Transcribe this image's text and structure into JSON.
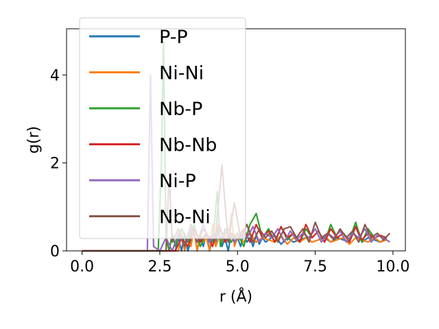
{
  "chart_data": {
    "type": "line",
    "xlabel": "r (Å)",
    "ylabel": "g(r)",
    "xlim": [
      -0.5,
      10.4
    ],
    "ylim": [
      0,
      5.05
    ],
    "xticks": [
      "0.0",
      "2.5",
      "5.0",
      "7.5",
      "10.0"
    ],
    "xtick_values": [
      0,
      2.5,
      5.0,
      7.5,
      10.0
    ],
    "yticks": [
      "0",
      "2",
      "4"
    ],
    "ytick_values": [
      0,
      2,
      4
    ],
    "grid": false,
    "legend_position": "top-left",
    "series": [
      {
        "name": "P-P",
        "color": "#1f77b4",
        "x": [
          0,
          3.0,
          3.1,
          3.2,
          3.3,
          3.4,
          3.5,
          3.6,
          3.7,
          3.8,
          3.9,
          4.0,
          4.1,
          4.2,
          4.3,
          4.4,
          4.5,
          4.6,
          4.7,
          4.8,
          4.9,
          5.0,
          5.1,
          5.2,
          5.3,
          5.4,
          5.5,
          5.6,
          5.7,
          5.8,
          5.9,
          6.0,
          6.2,
          6.4,
          6.6,
          6.8,
          7.0,
          7.2,
          7.4,
          7.6,
          7.8,
          8.0,
          8.2,
          8.4,
          8.6,
          8.8,
          9.0,
          9.2,
          9.4,
          9.6,
          9.8
        ],
        "y": [
          0,
          0,
          0.3,
          0,
          0.4,
          0,
          0.2,
          0.5,
          0,
          0.3,
          0.1,
          0.4,
          0,
          0.3,
          0.2,
          0.5,
          0.1,
          0.3,
          0,
          0.4,
          0.2,
          0.3,
          0.1,
          0.4,
          0.2,
          0.3,
          0.1,
          0.35,
          0.15,
          0.3,
          0.2,
          0.25,
          0.35,
          0.15,
          0.3,
          0.2,
          0.25,
          0.3,
          0.2,
          0.25,
          0.3,
          0.2,
          0.3,
          0.25,
          0.2,
          0.55,
          0.2,
          0.3,
          0.25,
          0.2,
          0.3
        ]
      },
      {
        "name": "Ni-Ni",
        "color": "#ff7f0e",
        "x": [
          0,
          3.1,
          3.2,
          3.3,
          3.4,
          3.5,
          3.6,
          3.7,
          3.8,
          3.9,
          4.0,
          4.1,
          4.2,
          4.3,
          4.4,
          4.5,
          4.6,
          4.7,
          4.8,
          4.9,
          5.0,
          5.2,
          5.4,
          5.6,
          5.8,
          6.0,
          6.2,
          6.4,
          6.6,
          6.8,
          7.0,
          7.2,
          7.4,
          7.6,
          7.8,
          8.0,
          8.2,
          8.4,
          8.6,
          8.8,
          9.0,
          9.2,
          9.4,
          9.6,
          9.8
        ],
        "y": [
          0,
          0,
          0.4,
          0,
          0.3,
          0.1,
          0.5,
          0,
          0.4,
          0.2,
          0.3,
          0,
          0.6,
          0.1,
          0.3,
          0.2,
          0.4,
          0.2,
          0.85,
          0.1,
          0.3,
          0.2,
          0.4,
          0.2,
          0.3,
          0.25,
          0.2,
          0.35,
          0.15,
          0.3,
          0.2,
          0.3,
          0.2,
          0.25,
          0.35,
          0.2,
          0.25,
          0.3,
          0.15,
          0.3,
          0.25,
          0.2,
          0.3,
          0.2,
          0.25
        ]
      },
      {
        "name": "Nb-P",
        "color": "#2ca02c",
        "x": [
          0,
          2.45,
          2.55,
          2.62,
          2.7,
          2.8,
          2.9,
          3.0,
          3.2,
          3.4,
          3.6,
          3.8,
          4.0,
          4.2,
          4.35,
          4.45,
          4.6,
          4.8,
          5.0,
          5.2,
          5.4,
          5.6,
          5.8,
          6.0,
          6.2,
          6.4,
          6.6,
          6.8,
          7.0,
          7.2,
          7.4,
          7.6,
          7.8,
          8.0,
          8.2,
          8.4,
          8.6,
          8.8,
          9.0,
          9.2,
          9.4,
          9.6,
          9.8
        ],
        "y": [
          0,
          0,
          2.0,
          4.75,
          0.3,
          0,
          0.4,
          0.1,
          0.5,
          0.2,
          0.6,
          0.1,
          0.4,
          0.2,
          1.35,
          0.1,
          0.5,
          0.2,
          0.4,
          0.1,
          0.6,
          0.85,
          0.3,
          0.5,
          0.2,
          0.55,
          0.25,
          0.4,
          0.2,
          0.5,
          0.3,
          0.45,
          0.2,
          0.6,
          0.3,
          0.4,
          0.25,
          0.65,
          0.2,
          0.5,
          0.3,
          0.35,
          0.3
        ]
      },
      {
        "name": "Nb-Nb",
        "color": "#d62728",
        "x": [
          0,
          3.0,
          3.2,
          3.4,
          3.6,
          3.8,
          4.0,
          4.2,
          4.4,
          4.6,
          4.8,
          5.0,
          5.2,
          5.4,
          5.6,
          5.8,
          6.0,
          6.2,
          6.4,
          6.6,
          6.8,
          7.0,
          7.2,
          7.4,
          7.6,
          7.8,
          8.0,
          8.2,
          8.4,
          8.6,
          8.8,
          9.0,
          9.2,
          9.4,
          9.6,
          9.8
        ],
        "y": [
          0,
          0,
          0.3,
          0.1,
          0.5,
          0.2,
          0.4,
          0.1,
          0.6,
          0.2,
          0.4,
          0.3,
          0.5,
          0.2,
          0.6,
          0.3,
          0.45,
          0.2,
          0.55,
          0.3,
          0.4,
          0.2,
          0.6,
          0.3,
          0.45,
          0.2,
          0.5,
          0.3,
          0.4,
          0.2,
          0.55,
          0.25,
          0.4,
          0.3,
          0.35,
          0.3
        ]
      },
      {
        "name": "Ni-P",
        "color": "#9467bd",
        "x": [
          0,
          2.1,
          2.2,
          2.3,
          2.5,
          2.7,
          2.9,
          3.1,
          3.3,
          3.5,
          3.7,
          3.9,
          4.1,
          4.3,
          4.5,
          4.7,
          4.9,
          5.1,
          5.3,
          5.5,
          5.7,
          5.9,
          6.1,
          6.3,
          6.5,
          6.7,
          6.9,
          7.1,
          7.3,
          7.5,
          7.7,
          7.9,
          8.1,
          8.3,
          8.5,
          8.7,
          8.9,
          9.1,
          9.3,
          9.5,
          9.7,
          9.9
        ],
        "y": [
          0,
          0,
          4.0,
          0.1,
          0,
          0.3,
          0,
          0.4,
          0.1,
          0.5,
          0.2,
          0.6,
          0.2,
          0.4,
          0.3,
          0.5,
          0.2,
          0.4,
          0.3,
          0.55,
          0.2,
          0.4,
          0.3,
          0.5,
          0.2,
          0.45,
          0.25,
          0.4,
          0.3,
          0.5,
          0.2,
          0.4,
          0.3,
          0.45,
          0.2,
          0.4,
          0.3,
          0.5,
          0.2,
          0.35,
          0.3,
          0.2
        ]
      },
      {
        "name": "Nb-Ni",
        "color": "#8c564b",
        "x": [
          0,
          2.7,
          2.8,
          2.9,
          3.1,
          3.3,
          3.5,
          3.7,
          3.9,
          4.1,
          4.3,
          4.5,
          4.7,
          4.9,
          5.1,
          5.3,
          5.5,
          5.7,
          5.9,
          6.1,
          6.3,
          6.5,
          6.7,
          6.9,
          7.1,
          7.3,
          7.5,
          7.7,
          7.9,
          8.1,
          8.3,
          8.5,
          8.7,
          8.9,
          9.1,
          9.3,
          9.5,
          9.7,
          9.9
        ],
        "y": [
          0,
          0,
          1.75,
          0.2,
          0.5,
          0.1,
          0.6,
          0.2,
          0.5,
          0.3,
          0.4,
          1.95,
          0.2,
          1.1,
          0.3,
          0.6,
          0.2,
          0.5,
          0.3,
          0.45,
          0.2,
          0.5,
          0.55,
          0.3,
          0.5,
          0.2,
          0.65,
          0.3,
          0.4,
          0.25,
          0.5,
          0.3,
          0.45,
          0.2,
          0.6,
          0.3,
          0.4,
          0.25,
          0.4
        ]
      }
    ]
  }
}
